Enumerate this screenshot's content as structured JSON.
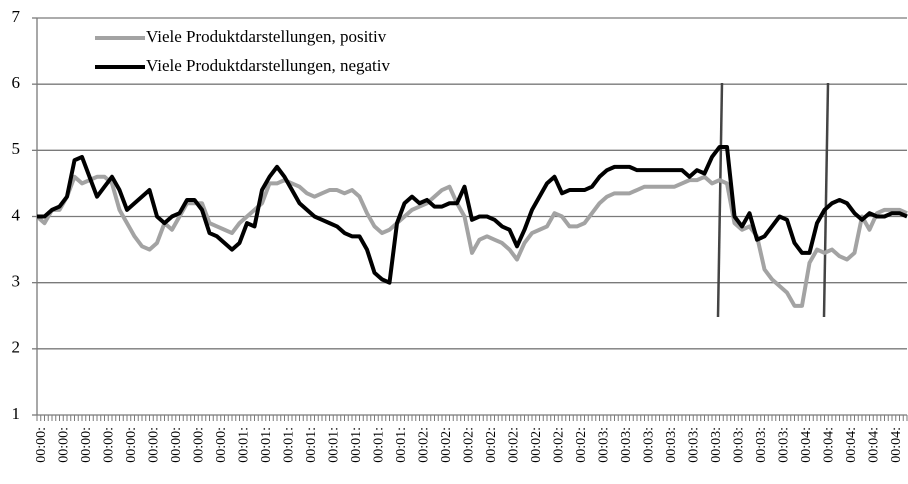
{
  "chart_data": {
    "type": "line",
    "categories": [
      "00:00:",
      null,
      null,
      "00:00:",
      null,
      null,
      "00:00:",
      null,
      null,
      "00:00:",
      null,
      null,
      "00:00:",
      null,
      null,
      "00:00:",
      null,
      null,
      "00:00:",
      null,
      null,
      "00:00:",
      null,
      null,
      "00:00:",
      null,
      null,
      "00:01:",
      null,
      null,
      "00:01:",
      null,
      null,
      "00:01:",
      null,
      null,
      "00:01:",
      null,
      null,
      "00:01:",
      null,
      null,
      "00:01:",
      null,
      null,
      "00:01:",
      null,
      null,
      "00:01:",
      null,
      null,
      "00:02:",
      null,
      null,
      "00:02:",
      null,
      null,
      "00:02:",
      null,
      null,
      "00:02:",
      null,
      null,
      "00:02:",
      null,
      null,
      "00:02:",
      null,
      null,
      "00:02:",
      null,
      null,
      "00:02:",
      null,
      null,
      "00:03:",
      null,
      null,
      "00:03:",
      null,
      null,
      "00:03:",
      null,
      null,
      "00:03:",
      null,
      null,
      "00:03:",
      null,
      null,
      "00:03:",
      null,
      null,
      "00:03:",
      null,
      null,
      "00:03:",
      null,
      null,
      "00:03:",
      null,
      null,
      "00:04:",
      null,
      null,
      "00:04:",
      null,
      null,
      "00:04:",
      null,
      null,
      "00:04:",
      null,
      null,
      "00:04:",
      null,
      null
    ],
    "series": [
      {
        "name": "Viele Produktdarstellungen, positiv",
        "color": "#a3a3a3",
        "values": [
          4.0,
          3.9,
          4.1,
          4.1,
          4.3,
          4.6,
          4.5,
          4.55,
          4.6,
          4.6,
          4.5,
          4.1,
          3.9,
          3.7,
          3.55,
          3.5,
          3.6,
          3.9,
          3.8,
          4.0,
          4.2,
          4.2,
          4.2,
          3.9,
          3.85,
          3.8,
          3.75,
          3.9,
          4.0,
          4.1,
          4.2,
          4.5,
          4.5,
          4.55,
          4.5,
          4.45,
          4.35,
          4.3,
          4.35,
          4.4,
          4.4,
          4.35,
          4.4,
          4.3,
          4.05,
          3.85,
          3.75,
          3.8,
          3.9,
          4.0,
          4.1,
          4.15,
          4.2,
          4.3,
          4.4,
          4.45,
          4.2,
          4.0,
          3.45,
          3.65,
          3.7,
          3.65,
          3.6,
          3.5,
          3.35,
          3.6,
          3.75,
          3.8,
          3.85,
          4.05,
          4.0,
          3.85,
          3.85,
          3.9,
          4.05,
          4.2,
          4.3,
          4.35,
          4.35,
          4.35,
          4.4,
          4.45,
          4.45,
          4.45,
          4.45,
          4.45,
          4.5,
          4.55,
          4.55,
          4.6,
          4.5,
          4.55,
          4.5,
          3.9,
          3.8,
          3.85,
          3.7,
          3.2,
          3.05,
          2.95,
          2.85,
          2.65,
          2.65,
          3.3,
          3.5,
          3.45,
          3.5,
          3.4,
          3.35,
          3.45,
          4.0,
          3.8,
          4.05,
          4.1,
          4.1,
          4.1,
          4.05
        ]
      },
      {
        "name": "Viele Produktdarstellungen, negativ",
        "color": "#000000",
        "values": [
          4.0,
          4.0,
          4.1,
          4.15,
          4.3,
          4.85,
          4.9,
          4.6,
          4.3,
          4.45,
          4.6,
          4.4,
          4.1,
          4.2,
          4.3,
          4.4,
          4.0,
          3.9,
          4.0,
          4.05,
          4.25,
          4.25,
          4.1,
          3.75,
          3.7,
          3.6,
          3.5,
          3.6,
          3.9,
          3.85,
          4.4,
          4.6,
          4.75,
          4.6,
          4.4,
          4.2,
          4.1,
          4.0,
          3.95,
          3.9,
          3.85,
          3.75,
          3.7,
          3.7,
          3.5,
          3.15,
          3.05,
          3.0,
          3.9,
          4.2,
          4.3,
          4.2,
          4.25,
          4.15,
          4.15,
          4.2,
          4.2,
          4.45,
          3.95,
          4.0,
          4.0,
          3.95,
          3.85,
          3.8,
          3.55,
          3.8,
          4.1,
          4.3,
          4.5,
          4.6,
          4.35,
          4.4,
          4.4,
          4.4,
          4.45,
          4.6,
          4.7,
          4.75,
          4.75,
          4.75,
          4.7,
          4.7,
          4.7,
          4.7,
          4.7,
          4.7,
          4.7,
          4.6,
          4.7,
          4.65,
          4.9,
          5.05,
          5.05,
          4.0,
          3.85,
          4.05,
          3.65,
          3.7,
          3.85,
          4.0,
          3.95,
          3.6,
          3.45,
          3.45,
          3.9,
          4.1,
          4.2,
          4.25,
          4.2,
          4.05,
          3.95,
          4.05,
          4.0,
          4.0,
          4.05,
          4.05,
          4.0
        ]
      }
    ],
    "ylim": [
      1,
      7
    ],
    "yticks": [
      1,
      2,
      3,
      4,
      5,
      6,
      7
    ],
    "grid": true,
    "legend": "top-left"
  }
}
